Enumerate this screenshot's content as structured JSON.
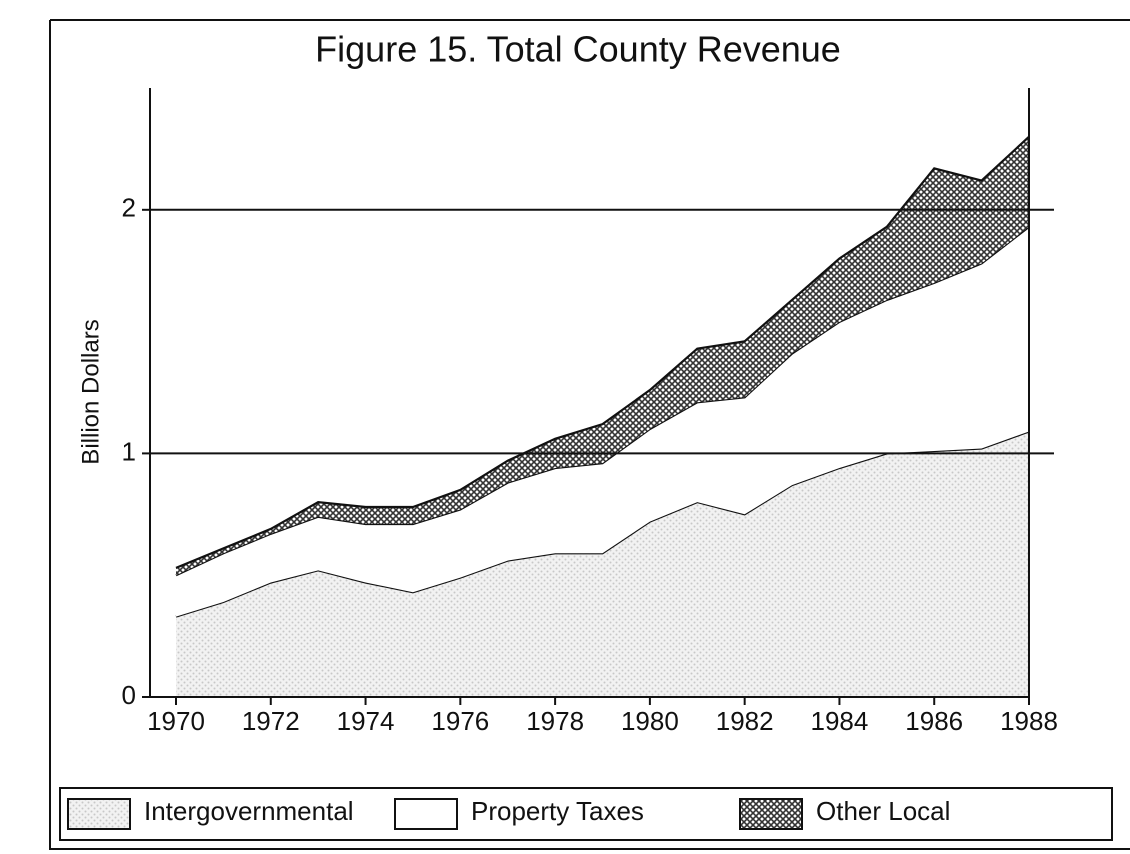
{
  "chart_data": {
    "type": "stacked_area",
    "title": "Figure 15.  Total County Revenue",
    "ylabel": "Billion Dollars",
    "x": [
      1970,
      1971,
      1972,
      1973,
      1974,
      1975,
      1976,
      1977,
      1978,
      1979,
      1980,
      1981,
      1982,
      1983,
      1984,
      1985,
      1986,
      1987,
      1988
    ],
    "xlim": [
      1970,
      1988
    ],
    "xticks": [
      1970,
      1972,
      1974,
      1976,
      1978,
      1980,
      1982,
      1984,
      1986,
      1988
    ],
    "ylim": [
      0,
      2.5
    ],
    "yticks": [
      0,
      1,
      2
    ],
    "grid": true,
    "series": [
      {
        "name": "Intergovernmental",
        "color": "#c8c8c8",
        "pattern": "dots",
        "values": [
          0.33,
          0.39,
          0.47,
          0.52,
          0.47,
          0.43,
          0.49,
          0.56,
          0.59,
          0.59,
          0.72,
          0.8,
          0.75,
          0.87,
          0.94,
          1.0,
          1.01,
          1.02,
          1.09
        ]
      },
      {
        "name": "Property Taxes",
        "color": "#ffffff",
        "pattern": "solid",
        "values": [
          0.17,
          0.2,
          0.2,
          0.22,
          0.24,
          0.28,
          0.28,
          0.32,
          0.35,
          0.37,
          0.38,
          0.41,
          0.48,
          0.54,
          0.6,
          0.63,
          0.69,
          0.76,
          0.84
        ]
      },
      {
        "name": "Other Local",
        "color": "#333333",
        "pattern": "crosshatch",
        "values": [
          0.03,
          0.02,
          0.02,
          0.06,
          0.07,
          0.07,
          0.08,
          0.09,
          0.12,
          0.16,
          0.16,
          0.22,
          0.23,
          0.22,
          0.26,
          0.3,
          0.47,
          0.34,
          0.37
        ]
      }
    ]
  }
}
